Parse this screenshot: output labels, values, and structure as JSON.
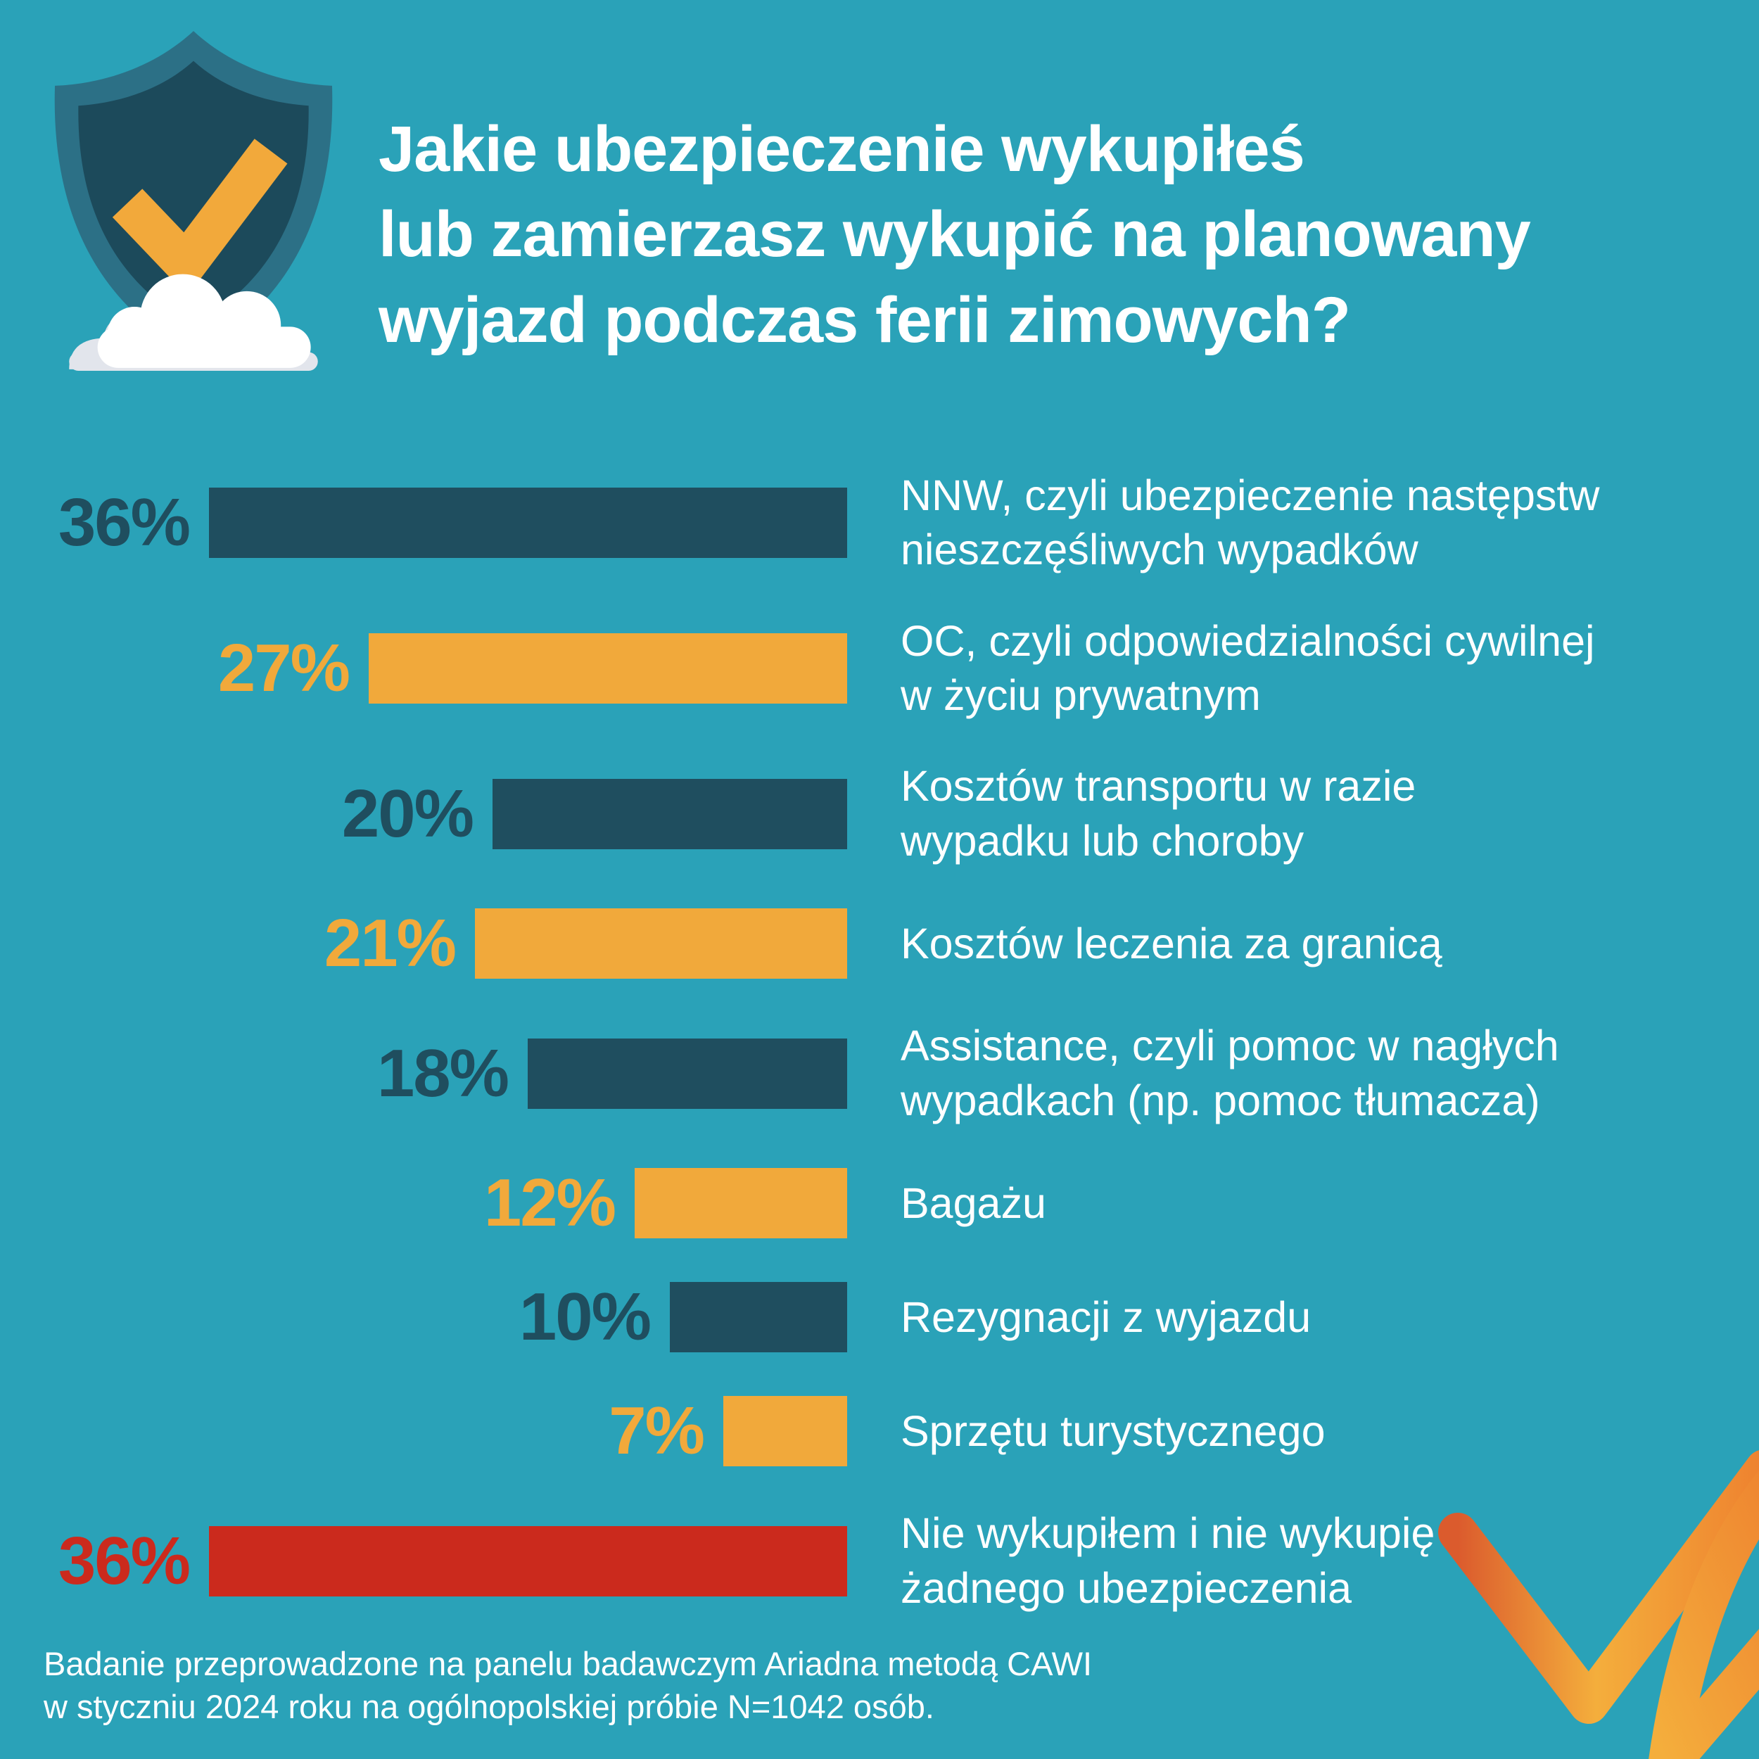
{
  "palette": {
    "background": "#2AA2B8",
    "dark_teal": "#1F4E5F",
    "orange": "#F1A93B",
    "red": "#CB2A1D",
    "white": "#FFFFFF",
    "shield_outer": "#2C7086",
    "shield_inner": "#1C4A5B",
    "check_orange": "#F2A93B",
    "cloud_white": "#FFFFFF",
    "cloud_shadow": "#E2E5EC",
    "logo_orange_deep": "#DB5B2D",
    "logo_orange_mid": "#EE812F",
    "logo_orange_light": "#F4AE3C"
  },
  "header": {
    "title_lines": [
      "Jakie ubezpieczenie wykupiłeś",
      "lub zamierzasz wykupić na planowany",
      "wyjazd podczas ferii zimowych?"
    ]
  },
  "chart_data": {
    "type": "bar",
    "orientation": "horizontal",
    "unit": "%",
    "bar_alignment": "bars right-aligned to a common edge, value labels at the left end of each bar",
    "max_value": 36,
    "grid": false,
    "legend": false,
    "categories": [
      "NNW, czyli ubezpieczenie następstw nieszczęśliwych wypadków",
      "OC, czyli odpowiedzialności cywilnej w życiu prywatnym",
      "Kosztów transportu w razie wypadku lub choroby",
      "Kosztów leczenia za granicą",
      "Assistance, czyli pomoc w nagłych wypadkach (np. pomoc tłumacza)",
      "Bagażu",
      "Rezygnacji z wyjazdu",
      "Sprzętu turystycznego",
      "Nie wykupiłem i nie wykupię żadnego ubezpieczenia"
    ],
    "values": [
      36,
      27,
      20,
      21,
      18,
      12,
      10,
      7,
      36
    ],
    "rows": [
      {
        "value": 36,
        "display": "36%",
        "color": "dark_teal",
        "label_lines": [
          "NNW, czyli ubezpieczenie następstw",
          "nieszczęśliwych wypadków"
        ]
      },
      {
        "value": 27,
        "display": "27%",
        "color": "orange",
        "label_lines": [
          "OC, czyli odpowiedzialności cywilnej",
          "w życiu prywatnym"
        ]
      },
      {
        "value": 20,
        "display": "20%",
        "color": "dark_teal",
        "label_lines": [
          "Kosztów transportu w razie",
          "wypadku lub choroby"
        ]
      },
      {
        "value": 21,
        "display": "21%",
        "color": "orange",
        "label_lines": [
          "Kosztów leczenia za granicą"
        ]
      },
      {
        "value": 18,
        "display": "18%",
        "color": "dark_teal",
        "label_lines": [
          "Assistance, czyli pomoc w nagłych",
          "wypadkach (np. pomoc tłumacza)"
        ]
      },
      {
        "value": 12,
        "display": "12%",
        "color": "orange",
        "label_lines": [
          "Bagażu"
        ]
      },
      {
        "value": 10,
        "display": "10%",
        "color": "dark_teal",
        "label_lines": [
          "Rezygnacji z wyjazdu"
        ]
      },
      {
        "value": 7,
        "display": "7%",
        "color": "orange",
        "label_lines": [
          "Sprzętu turystycznego"
        ]
      },
      {
        "value": 36,
        "display": "36%",
        "color": "red",
        "label_lines": [
          "Nie wykupiłem i nie wykupię",
          "żadnego ubezpieczenia"
        ]
      }
    ]
  },
  "footnote": {
    "lines": [
      "Badanie przeprowadzone na panelu badawczym Ariadna metodą CAWI",
      "w styczniu 2024 roku na ogólnopolskiej próbie N=1042 osób."
    ]
  },
  "icons": {
    "header_icon": "shield-check-cloud-icon",
    "footer_logo": "ariadna-ribbon-check-logo"
  }
}
